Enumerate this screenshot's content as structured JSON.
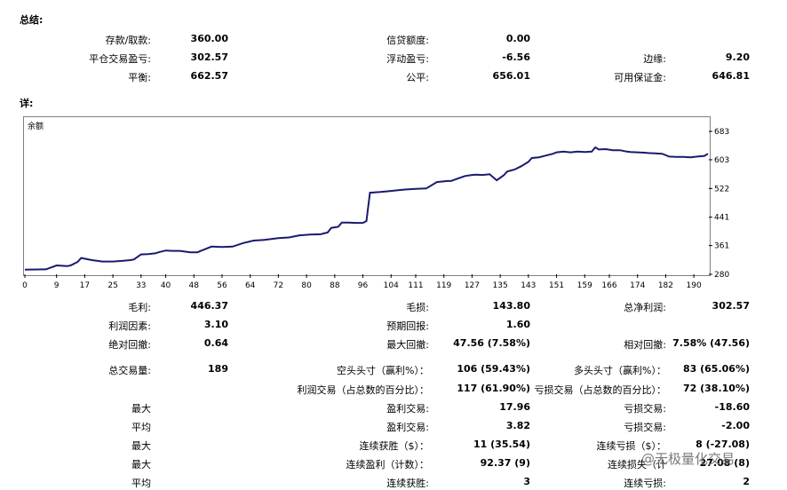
{
  "summary": {
    "title": "总结:",
    "deposit_label": "存款/取款:",
    "deposit_value": "360.00",
    "credit_label": "信贷额度:",
    "credit_value": "0.00",
    "closed_pl_label": "平仓交易盈亏:",
    "closed_pl_value": "302.57",
    "floating_pl_label": "浮动盈亏:",
    "floating_pl_value": "-6.56",
    "margin_label": "边缘:",
    "margin_value": "9.20",
    "balance_label": "平衡:",
    "balance_value": "662.57",
    "equity_label": "公平:",
    "equity_value": "656.01",
    "free_margin_label": "可用保证金:",
    "free_margin_value": "646.81"
  },
  "details": {
    "title": "详:"
  },
  "chart_data": {
    "type": "line",
    "title": "余额",
    "xlabel": "",
    "ylabel": "",
    "x_ticks": [
      "0",
      "9",
      "17",
      "25",
      "33",
      "40",
      "48",
      "56",
      "64",
      "72",
      "80",
      "88",
      "96",
      "104",
      "111",
      "119",
      "127",
      "135",
      "143",
      "151",
      "159",
      "166",
      "174",
      "182",
      "190"
    ],
    "y_ticks": [
      "683",
      "603",
      "522",
      "441",
      "361",
      "280"
    ],
    "ylim": [
      280,
      683
    ],
    "xlim": [
      0,
      194
    ],
    "line_color": "#1a1a6e",
    "grid": false,
    "x": [
      0,
      6,
      9,
      12,
      13,
      15,
      16,
      19,
      22,
      25,
      28,
      30,
      31,
      33,
      35,
      37,
      38,
      40,
      42,
      44,
      47,
      49,
      50,
      53,
      56,
      59,
      62,
      65,
      68,
      72,
      75,
      78,
      81,
      84,
      86,
      87,
      89,
      90,
      92,
      94,
      96,
      97,
      98,
      101,
      102,
      103,
      104,
      106,
      108,
      111,
      114,
      117,
      120,
      121,
      123,
      125,
      127,
      128,
      130,
      132,
      134,
      136,
      137,
      139,
      141,
      143,
      144,
      146,
      148,
      150,
      151,
      153,
      155,
      157,
      159,
      161,
      162,
      163,
      165,
      167,
      169,
      171,
      172,
      174,
      176,
      177,
      179,
      181,
      183,
      185,
      187,
      189,
      191,
      193,
      194
    ],
    "y": [
      293,
      294,
      305,
      303,
      305,
      315,
      326,
      320,
      316,
      316,
      318,
      320,
      322,
      336,
      337,
      339,
      342,
      347,
      346,
      346,
      342,
      342,
      346,
      358,
      357,
      358,
      368,
      375,
      377,
      382,
      384,
      390,
      392,
      393,
      398,
      411,
      414,
      426,
      426,
      425,
      425,
      430,
      510,
      512,
      513,
      514,
      515,
      517,
      519,
      521,
      522,
      540,
      543,
      543,
      550,
      557,
      560,
      561,
      560,
      562,
      545,
      559,
      570,
      575,
      585,
      597,
      608,
      610,
      615,
      620,
      624,
      626,
      624,
      626,
      625,
      626,
      638,
      632,
      633,
      630,
      630,
      626,
      625,
      624,
      623,
      622,
      621,
      620,
      612,
      611,
      611,
      610,
      612,
      614,
      620
    ]
  },
  "stats": [
    {
      "label": "毛利:",
      "value": "446.37"
    },
    {
      "label": "毛损:",
      "value": "143.80"
    },
    {
      "label": "总净利润:",
      "value": "302.57"
    },
    {
      "label": "利润因素:",
      "value": "3.10"
    },
    {
      "label": "预期回报:",
      "value": "1.60"
    },
    {
      "label": "绝对回撤:",
      "value": "0.64"
    },
    {
      "label": "最大回撤:",
      "value": "47.56 (7.58%)"
    },
    {
      "label": "相对回撤:",
      "value": "7.58% (47.56)"
    },
    {
      "label": "总交易量:",
      "value": "189"
    },
    {
      "label": "空头头寸（赢利%）：",
      "value": "106 (59.43%)"
    },
    {
      "label": "多头头寸（赢利%）：",
      "value": "83 (65.06%)"
    },
    {
      "label": "利润交易（占总数的百分比）：",
      "value": "117 (61.90%)"
    },
    {
      "label": "亏损交易（占总数的百分比）：",
      "value": "72 (38.10%)"
    },
    {
      "label": "最大",
      "value": ""
    },
    {
      "label": "盈利交易:",
      "value": "17.96"
    },
    {
      "label": "亏损交易:",
      "value": "-18.60"
    },
    {
      "label": "平均",
      "value": ""
    },
    {
      "label": "盈利交易:",
      "value": "3.82"
    },
    {
      "label": "亏损交易:",
      "value": "-2.00"
    },
    {
      "label": "最大",
      "value": ""
    },
    {
      "label": "连续获胜（$）：",
      "value": "11 (35.54)"
    },
    {
      "label": "连续亏损（$）：",
      "value": "8 (-27.08)"
    },
    {
      "label": "最大",
      "value": ""
    },
    {
      "label": "连续盈利（计数）：",
      "value": "92.37 (9)"
    },
    {
      "label": "连续损失（计",
      "value": "27.08 (8)"
    },
    {
      "label": "平均",
      "value": ""
    },
    {
      "label": "连续获胜:",
      "value": "3"
    },
    {
      "label": "连续亏损:",
      "value": "2"
    }
  ],
  "watermark": "@无极量化交易"
}
